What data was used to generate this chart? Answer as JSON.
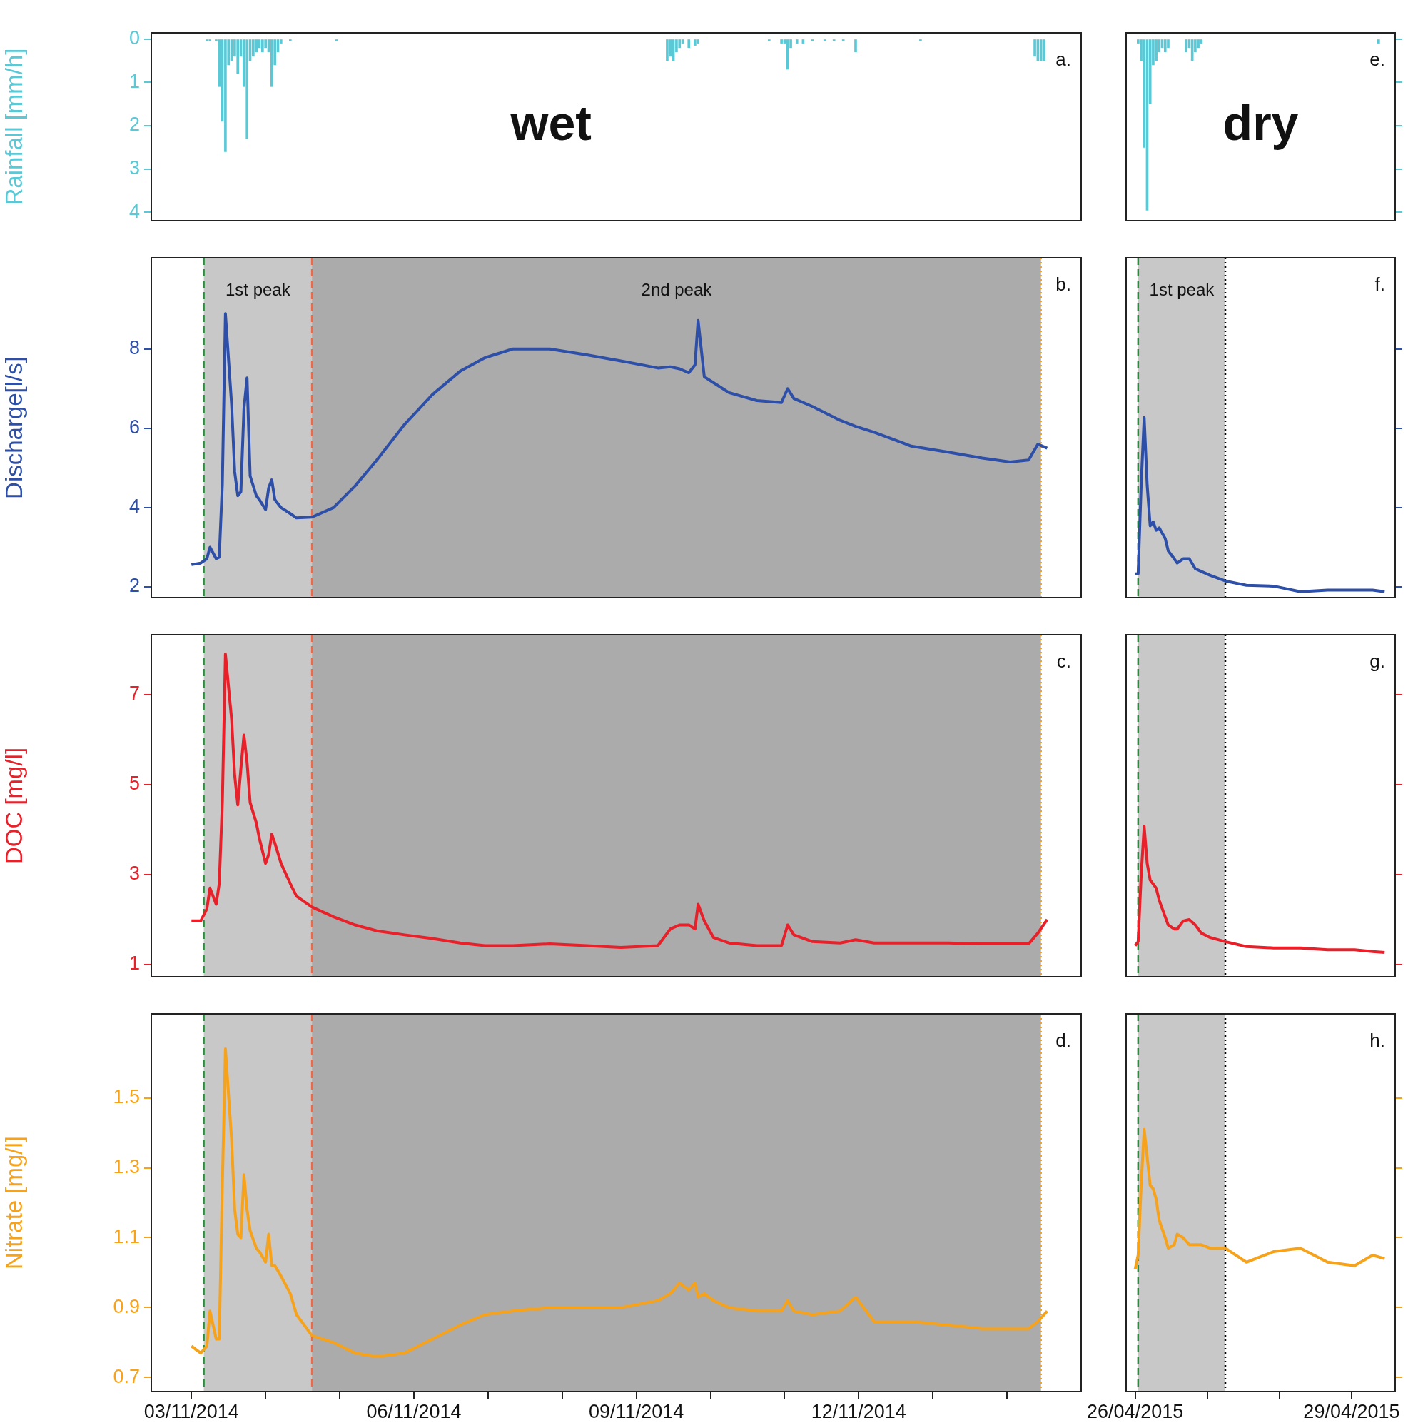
{
  "chart_data": [
    {
      "type": "bar",
      "ylabel": "Rainfall [mm/h]",
      "color": "#5bc8d6",
      "tick_labels": "y",
      "annotations": [
        "a.",
        "wet"
      ],
      "x": [
        "2014-11-03T05:00",
        "2014-11-03T06:00",
        "2014-11-03T08:00",
        "2014-11-03T09:00",
        "2014-11-03T10:00",
        "2014-11-03T11:00",
        "2014-11-03T12:00",
        "2014-11-03T13:00",
        "2014-11-03T14:00",
        "2014-11-03T15:00",
        "2014-11-03T16:00",
        "2014-11-03T17:00",
        "2014-11-03T18:00",
        "2014-11-03T19:00",
        "2014-11-03T20:00",
        "2014-11-03T21:00",
        "2014-11-03T22:00",
        "2014-11-03T23:00",
        "2014-11-04T00:00",
        "2014-11-04T01:00",
        "2014-11-04T02:00",
        "2014-11-04T03:00",
        "2014-11-04T04:00",
        "2014-11-04T05:00",
        "2014-11-04T08:00",
        "2014-11-04T23:00",
        "2014-11-09T10:00",
        "2014-11-09T11:00",
        "2014-11-09T12:00",
        "2014-11-09T13:00",
        "2014-11-09T14:00",
        "2014-11-09T15:00",
        "2014-11-09T17:00",
        "2014-11-09T19:00",
        "2014-11-09T20:00",
        "2014-11-10T19:00",
        "2014-11-10T23:00",
        "2014-11-11T00:00",
        "2014-11-11T01:00",
        "2014-11-11T02:00",
        "2014-11-11T04:00",
        "2014-11-11T06:00",
        "2014-11-11T09:00",
        "2014-11-11T13:00",
        "2014-11-11T16:00",
        "2014-11-11T19:00",
        "2014-11-11T23:00",
        "2014-11-12T20:00",
        "2014-11-14T09:00",
        "2014-11-14T10:00",
        "2014-11-14T11:00",
        "2014-11-14T12:00"
      ],
      "values": [
        0.05,
        0.05,
        0.05,
        1.1,
        1.9,
        2.6,
        0.6,
        0.5,
        0.4,
        0.8,
        0.4,
        1.1,
        2.3,
        0.5,
        0.4,
        0.3,
        0.2,
        0.3,
        0.2,
        0.3,
        1.1,
        0.6,
        0.3,
        0.1,
        0.05,
        0.05,
        0.5,
        0.4,
        0.5,
        0.3,
        0.2,
        0.1,
        0.2,
        0.15,
        0.1,
        0.05,
        0.1,
        0.1,
        0.7,
        0.2,
        0.1,
        0.1,
        0.05,
        0.05,
        0.05,
        0.05,
        0.3,
        0.05,
        0.4,
        0.5,
        0.5,
        0.5
      ],
      "xlim": [
        "2014-11-02T11:00",
        "2014-11-15T00:00"
      ],
      "ylim": [
        4.19,
        -0.14
      ],
      "yticks": [
        0,
        1,
        2,
        3,
        4
      ]
    },
    {
      "type": "line",
      "ylabel": "Discharge[l/s]",
      "color": "#2e4fa8",
      "tick_labels": "y",
      "annotations": [
        "b."
      ],
      "x": [
        "2014-11-03T00:00",
        "2014-11-03T03:00",
        "2014-11-03T05:00",
        "2014-11-03T06:00",
        "2014-11-03T08:00",
        "2014-11-03T09:00",
        "2014-11-03T10:00",
        "2014-11-03T11:00",
        "2014-11-03T13:00",
        "2014-11-03T14:00",
        "2014-11-03T15:00",
        "2014-11-03T16:00",
        "2014-11-03T17:00",
        "2014-11-03T18:00",
        "2014-11-03T19:00",
        "2014-11-03T21:00",
        "2014-11-03T22:00",
        "2014-11-04T00:00",
        "2014-11-04T01:00",
        "2014-11-04T02:00",
        "2014-11-04T03:00",
        "2014-11-04T05:00",
        "2014-11-04T08:00",
        "2014-11-04T10:00",
        "2014-11-04T15:00",
        "2014-11-04T22:00",
        "2014-11-05T05:00",
        "2014-11-05T12:00",
        "2014-11-05T21:00",
        "2014-11-06T06:00",
        "2014-11-06T15:00",
        "2014-11-06T23:00",
        "2014-11-07T08:00",
        "2014-11-07T20:00",
        "2014-11-08T08:00",
        "2014-11-08T19:00",
        "2014-11-09T07:00",
        "2014-11-09T11:00",
        "2014-11-09T14:00",
        "2014-11-09T17:00",
        "2014-11-09T19:00",
        "2014-11-09T20:00",
        "2014-11-09T22:00",
        "2014-11-10T01:00",
        "2014-11-10T06:00",
        "2014-11-10T15:00",
        "2014-11-10T23:00",
        "2014-11-11T01:00",
        "2014-11-11T03:00",
        "2014-11-11T09:00",
        "2014-11-11T18:00",
        "2014-11-11T23:00",
        "2014-11-12T05:00",
        "2014-11-12T17:00",
        "2014-11-13T05:00",
        "2014-11-13T16:00",
        "2014-11-14T01:00",
        "2014-11-14T07:00",
        "2014-11-14T10:00",
        "2014-11-14T13:00"
      ],
      "values": [
        2.56,
        2.6,
        2.71,
        3.0,
        2.71,
        2.75,
        4.6,
        8.89,
        6.6,
        4.9,
        4.3,
        4.4,
        6.5,
        7.27,
        4.8,
        4.3,
        4.2,
        3.95,
        4.5,
        4.7,
        4.2,
        4.0,
        3.85,
        3.74,
        3.76,
        4.0,
        4.55,
        5.2,
        6.1,
        6.85,
        7.44,
        7.78,
        8.0,
        8.0,
        7.85,
        7.7,
        7.52,
        7.55,
        7.5,
        7.4,
        7.6,
        8.72,
        7.3,
        7.15,
        6.9,
        6.7,
        6.65,
        7.0,
        6.75,
        6.55,
        6.2,
        6.05,
        5.9,
        5.55,
        5.4,
        5.25,
        5.15,
        5.2,
        5.6,
        5.5
      ],
      "xlim": [
        "2014-11-02T11:00",
        "2014-11-15T00:00"
      ],
      "ylim": [
        1.73,
        10.3
      ],
      "yticks": [
        2,
        4,
        6,
        8
      ],
      "bands": [
        {
          "axis": "x",
          "from": "2014-11-03T04:00",
          "to": "2014-11-04T15:00",
          "label": "1st peak",
          "color": "#c8c8c8"
        },
        {
          "axis": "x",
          "from": "2014-11-04T15:00",
          "to": "2014-11-14T11:00",
          "label": "2nd peak",
          "color": "#ababab"
        }
      ],
      "ref_lines": [
        {
          "axis": "x",
          "value": "2014-11-03T04:00",
          "color": "#2e8b3e",
          "line_style": "dashed"
        },
        {
          "axis": "x",
          "value": "2014-11-04T15:00",
          "color": "#ec6a4a",
          "line_style": "dashed"
        },
        {
          "axis": "x",
          "value": "2014-11-14T11:00",
          "color": "#f7a21b",
          "line_style": "dotted"
        }
      ]
    },
    {
      "type": "line",
      "ylabel": "DOC [mg/l]",
      "color": "#e8202a",
      "tick_labels": "y",
      "annotations": [
        "c."
      ],
      "x": [
        "2014-11-03T00:00",
        "2014-11-03T03:00",
        "2014-11-03T05:00",
        "2014-11-03T06:00",
        "2014-11-03T08:00",
        "2014-11-03T09:00",
        "2014-11-03T10:00",
        "2014-11-03T11:00",
        "2014-11-03T13:00",
        "2014-11-03T14:00",
        "2014-11-03T15:00",
        "2014-11-03T16:00",
        "2014-11-03T17:00",
        "2014-11-03T18:00",
        "2014-11-03T19:00",
        "2014-11-03T21:00",
        "2014-11-03T22:00",
        "2014-11-04T00:00",
        "2014-11-04T01:00",
        "2014-11-04T02:00",
        "2014-11-04T03:00",
        "2014-11-04T05:00",
        "2014-11-04T08:00",
        "2014-11-04T10:00",
        "2014-11-04T15:00",
        "2014-11-04T22:00",
        "2014-11-05T05:00",
        "2014-11-05T12:00",
        "2014-11-05T21:00",
        "2014-11-06T06:00",
        "2014-11-06T15:00",
        "2014-11-06T23:00",
        "2014-11-07T08:00",
        "2014-11-07T20:00",
        "2014-11-08T08:00",
        "2014-11-08T19:00",
        "2014-11-09T07:00",
        "2014-11-09T11:00",
        "2014-11-09T14:00",
        "2014-11-09T17:00",
        "2014-11-09T19:00",
        "2014-11-09T20:00",
        "2014-11-09T22:00",
        "2014-11-10T01:00",
        "2014-11-10T06:00",
        "2014-11-10T15:00",
        "2014-11-10T23:00",
        "2014-11-11T01:00",
        "2014-11-11T03:00",
        "2014-11-11T09:00",
        "2014-11-11T18:00",
        "2014-11-11T23:00",
        "2014-11-12T05:00",
        "2014-11-12T17:00",
        "2014-11-13T05:00",
        "2014-11-13T16:00",
        "2014-11-14T01:00",
        "2014-11-14T07:00",
        "2014-11-14T10:00",
        "2014-11-14T13:00"
      ],
      "values": [
        1.97,
        1.97,
        2.24,
        2.7,
        2.34,
        2.8,
        4.6,
        7.9,
        6.45,
        5.2,
        4.55,
        5.35,
        6.1,
        5.5,
        4.6,
        4.15,
        3.8,
        3.25,
        3.45,
        3.9,
        3.7,
        3.25,
        2.8,
        2.52,
        2.28,
        2.06,
        1.88,
        1.75,
        1.66,
        1.58,
        1.48,
        1.42,
        1.42,
        1.46,
        1.42,
        1.38,
        1.42,
        1.79,
        1.88,
        1.88,
        1.79,
        2.34,
        1.97,
        1.6,
        1.48,
        1.42,
        1.42,
        1.88,
        1.66,
        1.51,
        1.48,
        1.55,
        1.48,
        1.48,
        1.48,
        1.46,
        1.46,
        1.46,
        1.7,
        2.0
      ],
      "xlim": [
        "2014-11-02T11:00",
        "2014-11-15T00:00"
      ],
      "ylim": [
        0.73,
        8.33
      ],
      "yticks": [
        1,
        3,
        5,
        7
      ],
      "bands": [
        {
          "axis": "x",
          "from": "2014-11-03T04:00",
          "to": "2014-11-04T15:00",
          "color": "#c8c8c8"
        },
        {
          "axis": "x",
          "from": "2014-11-04T15:00",
          "to": "2014-11-14T11:00",
          "color": "#ababab"
        }
      ],
      "ref_lines": [
        {
          "axis": "x",
          "value": "2014-11-03T04:00",
          "color": "#2e8b3e",
          "line_style": "dashed"
        },
        {
          "axis": "x",
          "value": "2014-11-04T15:00",
          "color": "#ec6a4a",
          "line_style": "dashed"
        },
        {
          "axis": "x",
          "value": "2014-11-14T11:00",
          "color": "#f7a21b",
          "line_style": "dotted"
        }
      ]
    },
    {
      "type": "line",
      "ylabel": "Nitrate [mg/l]",
      "color": "#f7a21b",
      "annotations": [
        "d."
      ],
      "x": [
        "2014-11-03T00:00",
        "2014-11-03T03:00",
        "2014-11-03T05:00",
        "2014-11-03T06:00",
        "2014-11-03T08:00",
        "2014-11-03T09:00",
        "2014-11-03T10:00",
        "2014-11-03T11:00",
        "2014-11-03T13:00",
        "2014-11-03T14:00",
        "2014-11-03T15:00",
        "2014-11-03T16:00",
        "2014-11-03T17:00",
        "2014-11-03T18:00",
        "2014-11-03T19:00",
        "2014-11-03T21:00",
        "2014-11-03T22:00",
        "2014-11-04T00:00",
        "2014-11-04T01:00",
        "2014-11-04T02:00",
        "2014-11-04T03:00",
        "2014-11-04T05:00",
        "2014-11-04T08:00",
        "2014-11-04T10:00",
        "2014-11-04T15:00",
        "2014-11-04T22:00",
        "2014-11-05T05:00",
        "2014-11-05T12:00",
        "2014-11-05T21:00",
        "2014-11-06T06:00",
        "2014-11-06T15:00",
        "2014-11-06T23:00",
        "2014-11-07T08:00",
        "2014-11-07T20:00",
        "2014-11-08T08:00",
        "2014-11-08T19:00",
        "2014-11-09T07:00",
        "2014-11-09T11:00",
        "2014-11-09T14:00",
        "2014-11-09T17:00",
        "2014-11-09T19:00",
        "2014-11-09T20:00",
        "2014-11-09T22:00",
        "2014-11-10T01:00",
        "2014-11-10T06:00",
        "2014-11-10T15:00",
        "2014-11-10T23:00",
        "2014-11-11T01:00",
        "2014-11-11T03:00",
        "2014-11-11T09:00",
        "2014-11-11T18:00",
        "2014-11-11T23:00",
        "2014-11-12T05:00",
        "2014-11-12T17:00",
        "2014-11-13T05:00",
        "2014-11-13T16:00",
        "2014-11-14T01:00",
        "2014-11-14T07:00",
        "2014-11-14T10:00",
        "2014-11-14T13:00"
      ],
      "values": [
        0.79,
        0.77,
        0.79,
        0.89,
        0.81,
        0.81,
        1.25,
        1.64,
        1.38,
        1.18,
        1.11,
        1.1,
        1.28,
        1.18,
        1.12,
        1.07,
        1.06,
        1.03,
        1.11,
        1.02,
        1.02,
        0.99,
        0.94,
        0.88,
        0.82,
        0.8,
        0.77,
        0.76,
        0.77,
        0.81,
        0.85,
        0.88,
        0.89,
        0.9,
        0.9,
        0.9,
        0.92,
        0.94,
        0.97,
        0.95,
        0.97,
        0.93,
        0.94,
        0.92,
        0.9,
        0.89,
        0.89,
        0.92,
        0.89,
        0.88,
        0.89,
        0.93,
        0.86,
        0.86,
        0.85,
        0.84,
        0.84,
        0.84,
        0.86,
        0.89
      ],
      "xlim": [
        "2014-11-02T11:00",
        "2014-11-15T00:00"
      ],
      "ylim": [
        0.66,
        1.74
      ],
      "yticks": [
        0.7,
        0.9,
        1.1,
        1.3,
        1.5
      ],
      "xticks": [
        {
          "value": "2014-11-03T00:00",
          "label": "03/11/2014"
        },
        {
          "value": "2014-11-04T00:00",
          "label": null
        },
        {
          "value": "2014-11-05T00:00",
          "label": null
        },
        {
          "value": "2014-11-06T00:00",
          "label": "06/11/2014"
        },
        {
          "value": "2014-11-07T00:00",
          "label": null
        },
        {
          "value": "2014-11-08T00:00",
          "label": null
        },
        {
          "value": "2014-11-09T00:00",
          "label": "09/11/2014"
        },
        {
          "value": "2014-11-10T00:00",
          "label": null
        },
        {
          "value": "2014-11-11T00:00",
          "label": null
        },
        {
          "value": "2014-11-12T00:00",
          "label": "12/11/2014"
        },
        {
          "value": "2014-11-13T00:00",
          "label": null
        },
        {
          "value": "2014-11-14T00:00",
          "label": null
        }
      ],
      "bands": [
        {
          "axis": "x",
          "from": "2014-11-03T04:00",
          "to": "2014-11-04T15:00",
          "color": "#c8c8c8"
        },
        {
          "axis": "x",
          "from": "2014-11-04T15:00",
          "to": "2014-11-14T11:00",
          "color": "#ababab"
        }
      ],
      "ref_lines": [
        {
          "axis": "x",
          "value": "2014-11-03T04:00",
          "color": "#2e8b3e",
          "line_style": "dashed"
        },
        {
          "axis": "x",
          "value": "2014-11-04T15:00",
          "color": "#ec6a4a",
          "line_style": "dashed"
        },
        {
          "axis": "x",
          "value": "2014-11-14T11:00",
          "color": "#f7a21b",
          "line_style": "dotted"
        }
      ]
    },
    {
      "type": "bar",
      "color": "#5bc8d6",
      "tick_labels": false,
      "annotations": [
        "e.",
        "dry"
      ],
      "x": [
        "2015-04-26T01:00",
        "2015-04-26T02:00",
        "2015-04-26T03:00",
        "2015-04-26T04:00",
        "2015-04-26T05:00",
        "2015-04-26T06:00",
        "2015-04-26T07:00",
        "2015-04-26T08:00",
        "2015-04-26T09:00",
        "2015-04-26T10:00",
        "2015-04-26T11:00",
        "2015-04-26T17:00",
        "2015-04-26T18:00",
        "2015-04-26T19:00",
        "2015-04-26T20:00",
        "2015-04-26T21:00",
        "2015-04-26T22:00",
        "2015-04-29T09:00"
      ],
      "values": [
        0.1,
        0.5,
        2.5,
        3.95,
        1.5,
        0.6,
        0.5,
        0.3,
        0.2,
        0.3,
        0.2,
        0.3,
        0.2,
        0.5,
        0.3,
        0.2,
        0.1,
        0.1
      ],
      "xlim": [
        "2015-04-25T21:00",
        "2015-04-29T14:30"
      ],
      "ylim": [
        4.19,
        -0.14
      ],
      "yticks": [
        0,
        1,
        2,
        3,
        4
      ]
    },
    {
      "type": "line",
      "color": "#2e4fa8",
      "tick_labels": false,
      "annotations": [
        "f."
      ],
      "x": [
        "2015-04-26T00:00",
        "2015-04-26T01:00",
        "2015-04-26T02:00",
        "2015-04-26T03:00",
        "2015-04-26T04:00",
        "2015-04-26T05:00",
        "2015-04-26T06:00",
        "2015-04-26T07:00",
        "2015-04-26T08:00",
        "2015-04-26T10:00",
        "2015-04-26T11:00",
        "2015-04-26T13:00",
        "2015-04-26T14:00",
        "2015-04-26T16:00",
        "2015-04-26T18:00",
        "2015-04-26T20:00",
        "2015-04-26T22:00",
        "2015-04-27T01:00",
        "2015-04-27T06:00",
        "2015-04-27T13:00",
        "2015-04-27T22:00",
        "2015-04-28T07:00",
        "2015-04-28T16:00",
        "2015-04-29T01:00",
        "2015-04-29T07:00",
        "2015-04-29T11:00"
      ],
      "values": [
        2.33,
        2.33,
        4.57,
        6.27,
        4.57,
        3.54,
        3.64,
        3.43,
        3.49,
        3.22,
        2.91,
        2.71,
        2.6,
        2.71,
        2.71,
        2.46,
        2.39,
        2.29,
        2.15,
        2.04,
        2.02,
        1.88,
        1.92,
        1.92,
        1.92,
        1.88
      ],
      "xlim": [
        "2015-04-25T21:00",
        "2015-04-29T14:30"
      ],
      "ylim": [
        1.73,
        10.3
      ],
      "yticks": [
        2,
        4,
        6,
        8
      ],
      "bands": [
        {
          "axis": "x",
          "from": "2015-04-26T01:00",
          "to": "2015-04-27T06:00",
          "label": "1st peak",
          "color": "#c8c8c8"
        }
      ],
      "ref_lines": [
        {
          "axis": "x",
          "value": "2015-04-26T01:00",
          "color": "#2e8b3e",
          "line_style": "dashed"
        },
        {
          "axis": "x",
          "value": "2015-04-27T06:00",
          "color": "#000000",
          "line_style": "dotted"
        }
      ]
    },
    {
      "type": "line",
      "color": "#e8202a",
      "tick_labels": false,
      "annotations": [
        "g."
      ],
      "x": [
        "2015-04-26T00:00",
        "2015-04-26T01:00",
        "2015-04-26T02:00",
        "2015-04-26T03:00",
        "2015-04-26T04:00",
        "2015-04-26T05:00",
        "2015-04-26T06:00",
        "2015-04-26T07:00",
        "2015-04-26T08:00",
        "2015-04-26T10:00",
        "2015-04-26T11:00",
        "2015-04-26T13:00",
        "2015-04-26T14:00",
        "2015-04-26T16:00",
        "2015-04-26T18:00",
        "2015-04-26T20:00",
        "2015-04-26T22:00",
        "2015-04-27T01:00",
        "2015-04-27T06:00",
        "2015-04-27T13:00",
        "2015-04-27T22:00",
        "2015-04-28T07:00",
        "2015-04-28T16:00",
        "2015-04-29T01:00",
        "2015-04-29T07:00",
        "2015-04-29T11:00"
      ],
      "values": [
        1.42,
        1.51,
        2.98,
        4.07,
        3.25,
        2.88,
        2.79,
        2.7,
        2.43,
        2.06,
        1.88,
        1.79,
        1.79,
        1.97,
        2.0,
        1.88,
        1.7,
        1.6,
        1.51,
        1.4,
        1.37,
        1.37,
        1.33,
        1.33,
        1.29,
        1.27
      ],
      "xlim": [
        "2015-04-25T21:00",
        "2015-04-29T14:30"
      ],
      "ylim": [
        0.73,
        8.33
      ],
      "yticks": [
        1,
        3,
        5,
        7
      ],
      "bands": [
        {
          "axis": "x",
          "from": "2015-04-26T01:00",
          "to": "2015-04-27T06:00",
          "color": "#c8c8c8"
        }
      ],
      "ref_lines": [
        {
          "axis": "x",
          "value": "2015-04-26T01:00",
          "color": "#2e8b3e",
          "line_style": "dashed"
        },
        {
          "axis": "x",
          "value": "2015-04-27T06:00",
          "color": "#000000",
          "line_style": "dotted"
        }
      ]
    },
    {
      "type": "line",
      "color": "#f7a21b",
      "tick_labels": "x",
      "annotations": [
        "h."
      ],
      "x": [
        "2015-04-26T00:00",
        "2015-04-26T01:00",
        "2015-04-26T02:00",
        "2015-04-26T03:00",
        "2015-04-26T04:00",
        "2015-04-26T05:00",
        "2015-04-26T06:00",
        "2015-04-26T07:00",
        "2015-04-26T08:00",
        "2015-04-26T10:00",
        "2015-04-26T11:00",
        "2015-04-26T13:00",
        "2015-04-26T14:00",
        "2015-04-26T16:00",
        "2015-04-26T18:00",
        "2015-04-26T20:00",
        "2015-04-26T22:00",
        "2015-04-27T01:00",
        "2015-04-27T06:00",
        "2015-04-27T13:00",
        "2015-04-27T22:00",
        "2015-04-28T07:00",
        "2015-04-28T16:00",
        "2015-04-29T01:00",
        "2015-04-29T07:00",
        "2015-04-29T11:00"
      ],
      "values": [
        1.01,
        1.05,
        1.25,
        1.41,
        1.33,
        1.25,
        1.24,
        1.21,
        1.15,
        1.1,
        1.07,
        1.08,
        1.11,
        1.1,
        1.08,
        1.08,
        1.08,
        1.07,
        1.07,
        1.03,
        1.06,
        1.07,
        1.03,
        1.02,
        1.05,
        1.04
      ],
      "xlim": [
        "2015-04-25T21:00",
        "2015-04-29T14:30"
      ],
      "ylim": [
        0.66,
        1.74
      ],
      "yticks": [
        0.7,
        0.9,
        1.1,
        1.3,
        1.5
      ],
      "xticks": [
        {
          "value": "2015-04-26T00:00",
          "label": "26/04/2015"
        },
        {
          "value": "2015-04-27T00:00",
          "label": null
        },
        {
          "value": "2015-04-28T00:00",
          "label": null
        },
        {
          "value": "2015-04-29T00:00",
          "label": "29/04/2015"
        }
      ],
      "bands": [
        {
          "axis": "x",
          "from": "2015-04-26T01:00",
          "to": "2015-04-27T06:00",
          "color": "#c8c8c8"
        }
      ],
      "ref_lines": [
        {
          "axis": "x",
          "value": "2015-04-26T01:00",
          "color": "#2e8b3e",
          "line_style": "dashed"
        },
        {
          "axis": "x",
          "value": "2015-04-27T06:00",
          "color": "#000000",
          "line_style": "dotted"
        }
      ]
    }
  ]
}
